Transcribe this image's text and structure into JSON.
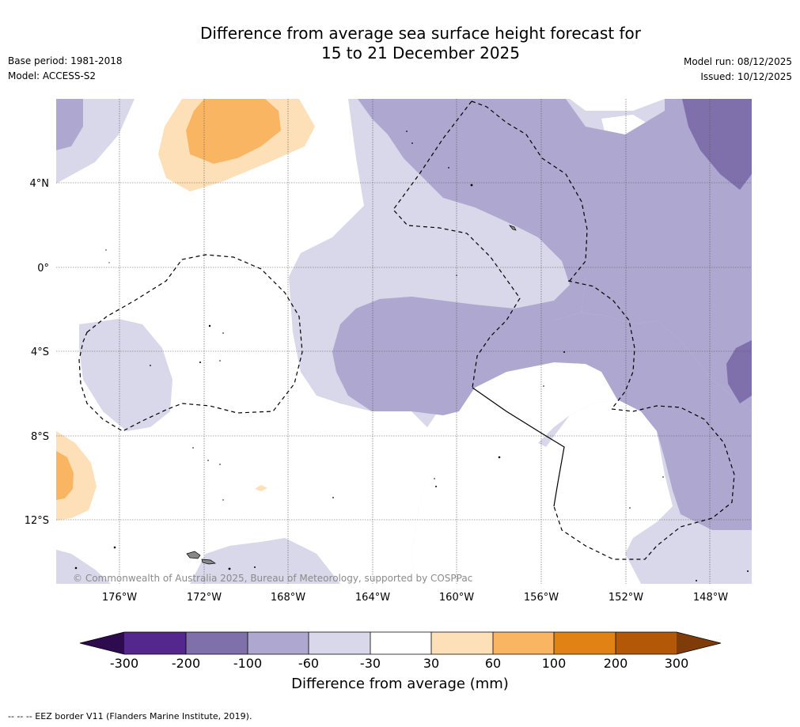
{
  "title_line1": "Difference from average sea surface height forecast for",
  "title_line2": "15 to 21 December 2025",
  "base_period": "Base period: 1981-2018",
  "model": "Model: ACCESS-S2",
  "model_run": "Model run: 08/12/2025",
  "issued": "Issued: 10/12/2025",
  "lat_labels": [
    "4°N",
    "0°",
    "4°S",
    "8°S",
    "12°S"
  ],
  "lon_labels": [
    "176°W",
    "172°W",
    "168°W",
    "164°W",
    "160°W",
    "156°W",
    "152°W",
    "148°W"
  ],
  "copyright": "© Commonwealth of Australia 2025, Bureau of Meteorology, supported by COSPPac",
  "colorbar": {
    "title": "Difference from average (mm)",
    "tick_labels": [
      "-300",
      "-200",
      "-100",
      "-60",
      "-30",
      "30",
      "60",
      "100",
      "200",
      "300"
    ],
    "colors": [
      "#2e0b4f",
      "#54278f",
      "#7f6faa",
      "#aea8d0",
      "#d8d8ea",
      "#ffffff",
      "#fde0b8",
      "#f9b562",
      "#e08214",
      "#b35806",
      "#7f3b08"
    ]
  },
  "footer": "--  --  -- EEZ border V11 (Flanders Marine Institute, 2019)."
}
